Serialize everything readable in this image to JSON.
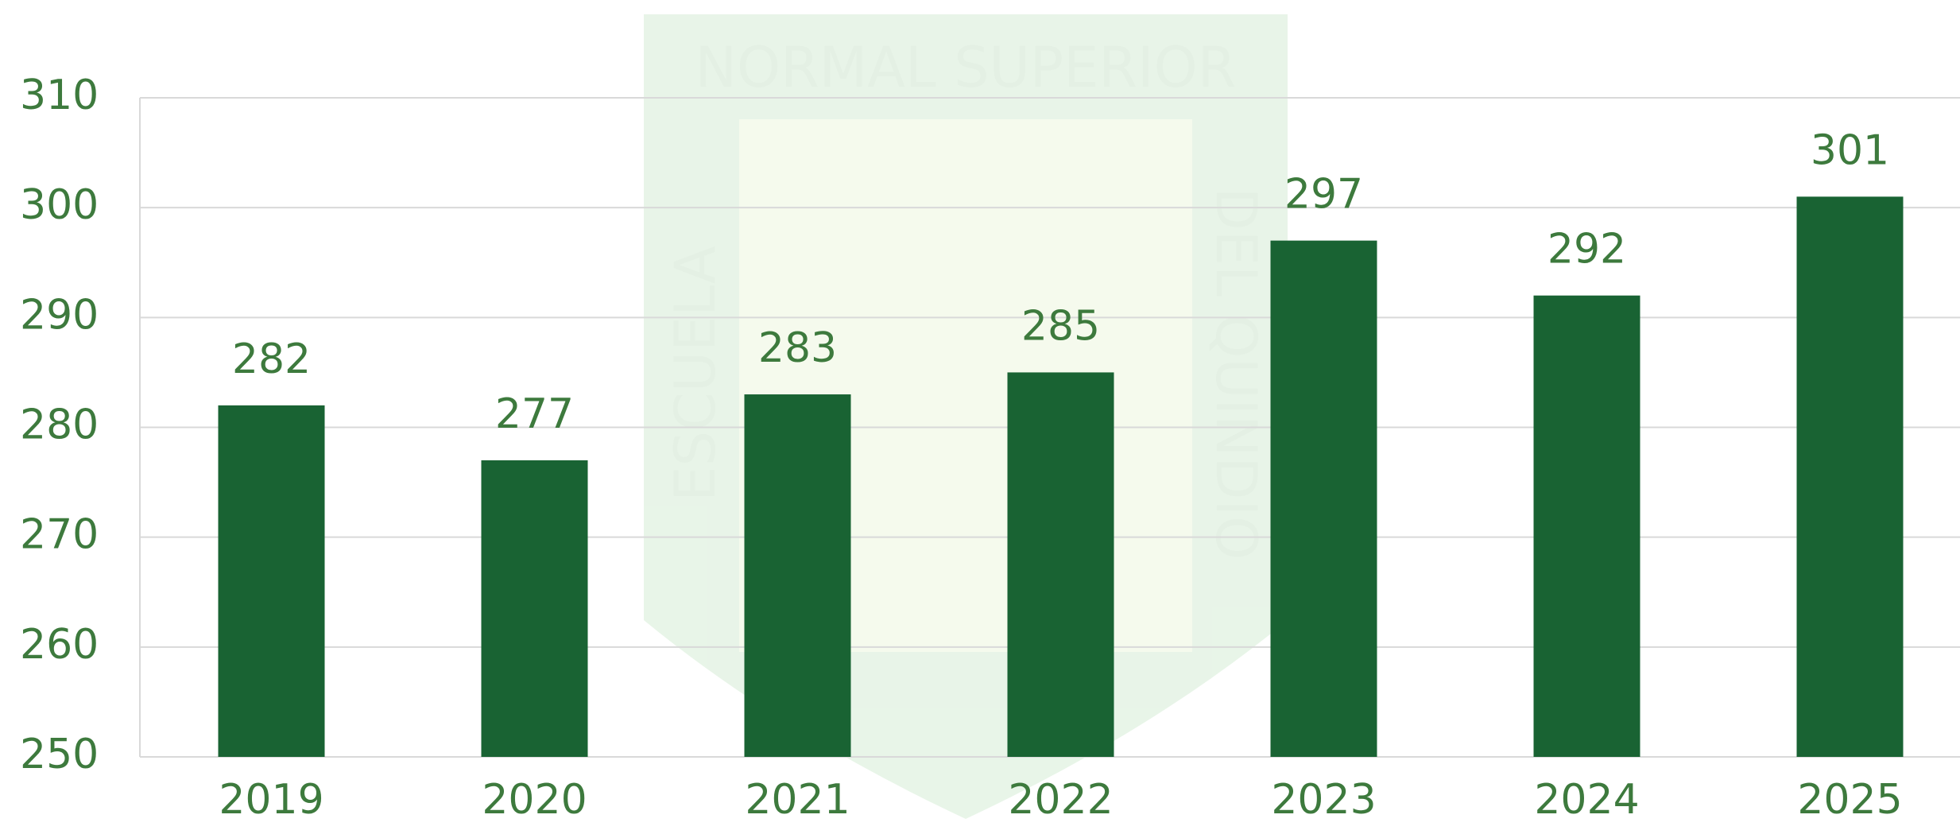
{
  "chart_data": {
    "type": "bar",
    "categories": [
      "2019",
      "2020",
      "2021",
      "2022",
      "2023",
      "2024",
      "2025"
    ],
    "values": [
      282,
      277,
      283,
      285,
      297,
      292,
      301
    ],
    "color": "#196333",
    "ylim": [
      250,
      310
    ],
    "yticks": [
      250,
      260,
      270,
      280,
      290,
      300,
      310
    ],
    "grid": true
  },
  "watermark": {
    "top": "NORMAL SUPERIOR",
    "left": "ESCUELA",
    "right": "DEL QUINDIO"
  }
}
